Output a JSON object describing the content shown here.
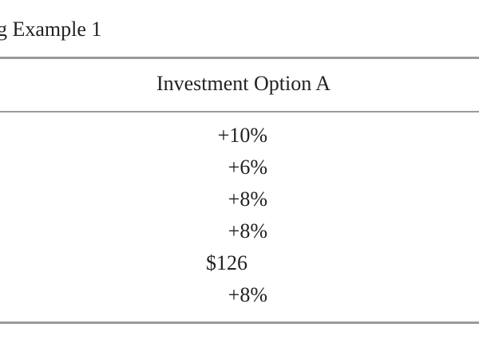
{
  "title": "g Example 1",
  "table": {
    "header": [
      "Investment Option A"
    ],
    "rows": [
      [
        "+10%"
      ],
      [
        "+6%"
      ],
      [
        "+8%"
      ],
      [
        "+8%"
      ],
      [
        "$126"
      ],
      [
        "+8%"
      ]
    ]
  }
}
